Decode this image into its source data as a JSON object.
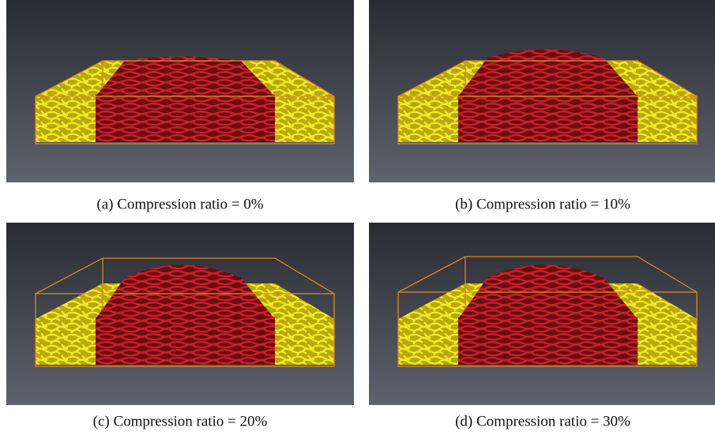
{
  "panels": [
    {
      "caption": "(a) Compression ratio = 0%"
    },
    {
      "caption": "(b) Compression ratio = 10%"
    },
    {
      "caption": "(c) Compression ratio = 20%"
    },
    {
      "caption": "(d) Compression ratio = 30%"
    }
  ]
}
